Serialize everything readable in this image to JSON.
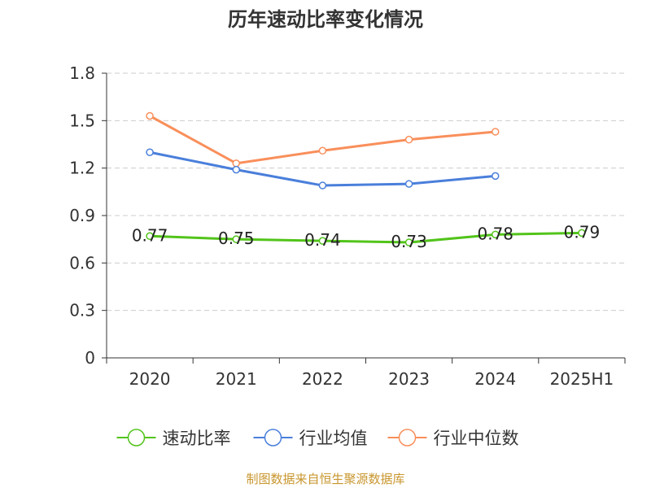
{
  "chart_data": {
    "type": "line",
    "title": "历年速动比率变化情况",
    "categories": [
      "2020",
      "2021",
      "2022",
      "2023",
      "2024",
      "2025H1"
    ],
    "y_ticks": [
      "0",
      "0.3",
      "0.6",
      "0.9",
      "1.2",
      "1.5",
      "1.8"
    ],
    "ylim": [
      0,
      1.8
    ],
    "grid": "horizontal dashed",
    "legend_position": "bottom",
    "series": [
      {
        "name": "速动比率",
        "color": "#52c41a",
        "values": [
          0.77,
          0.75,
          0.74,
          0.73,
          0.78,
          0.79
        ],
        "labels": [
          "0.77",
          "0.75",
          "0.74",
          "0.73",
          "0.78",
          "0.79"
        ]
      },
      {
        "name": "行业均值",
        "color": "#4a7fdb",
        "values": [
          1.3,
          1.19,
          1.09,
          1.1,
          1.15,
          null
        ]
      },
      {
        "name": "行业中位数",
        "color": "#f98f5b",
        "values": [
          1.53,
          1.23,
          1.31,
          1.38,
          1.43,
          null
        ]
      }
    ]
  },
  "footer": {
    "source": "制图数据来自恒生聚源数据库"
  }
}
